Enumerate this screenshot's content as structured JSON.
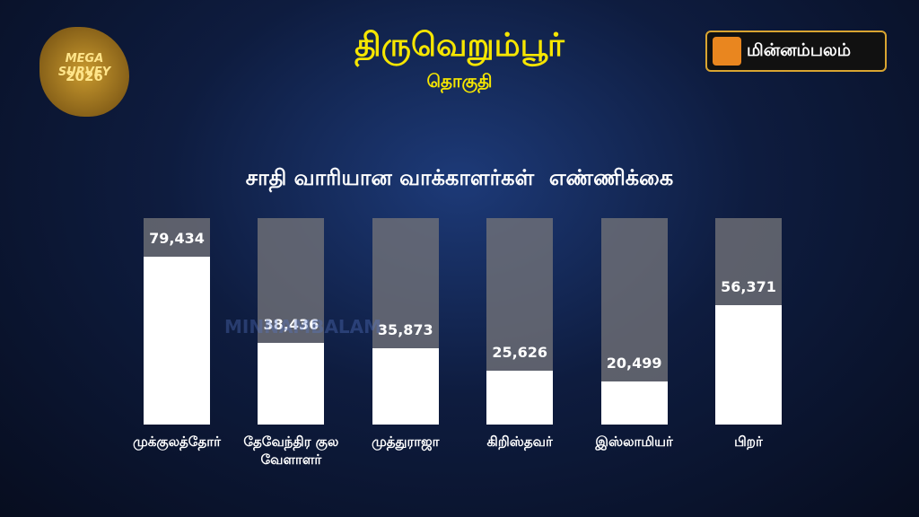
{
  "badge": {
    "line1": "MEGA SURVEY",
    "line2": "2026"
  },
  "logo": {
    "text": "மின்னம்பலம்"
  },
  "watermark": "MINNAMBALAM",
  "chart_data": {
    "type": "bar",
    "title": "திருவெறும்பூர்",
    "subtitle": "தொகுதி",
    "chart_title": "சாதி வாரியான வாக்காளர்கள்  எண்ணிக்கை",
    "categories": [
      "முக்குலத்தோர்",
      "தேவேந்திர குல வேளாளர்",
      "முத்துராஜா",
      "கிறிஸ்தவர்",
      "இஸ்லாமியர்",
      "பிறர்"
    ],
    "values": [
      79434,
      38436,
      35873,
      25626,
      20499,
      56371
    ],
    "value_labels": [
      "79,434",
      "38,436",
      "35,873",
      "25,626",
      "20,499",
      "56,371"
    ],
    "color": "#ffffff"
  }
}
